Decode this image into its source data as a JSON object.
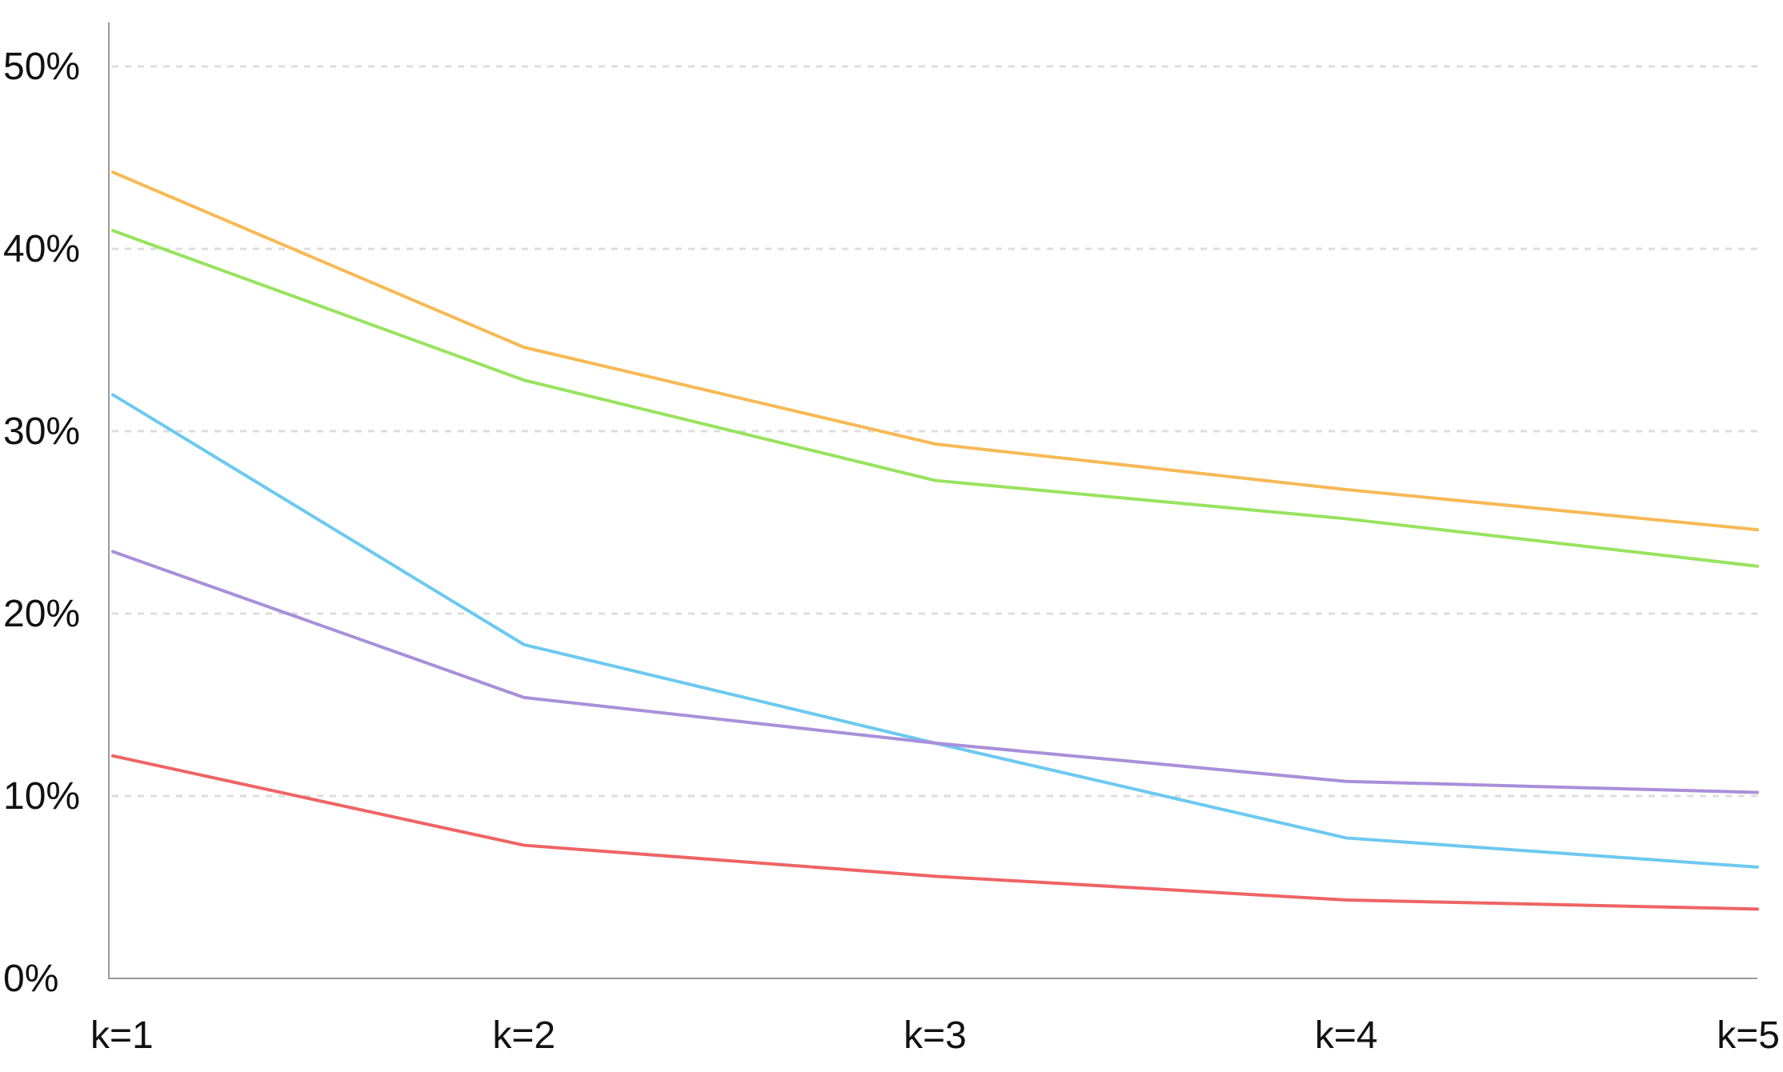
{
  "chart_data": {
    "type": "line",
    "title": "",
    "xlabel": "",
    "ylabel": "",
    "categories": [
      "k=1",
      "k=2",
      "k=3",
      "k=4",
      "k=5"
    ],
    "ylim": [
      0,
      50
    ],
    "y_ticks": [
      0,
      10,
      20,
      30,
      40,
      50
    ],
    "y_tick_labels": [
      "0%",
      "10%",
      "20%",
      "30%",
      "40%",
      "50%"
    ],
    "grid": true,
    "legend": "none",
    "series": [
      {
        "color": "#f7b955",
        "values": [
          44.2,
          34.6,
          29.3,
          26.8,
          24.6
        ]
      },
      {
        "color": "#97e35e",
        "values": [
          41.0,
          32.8,
          27.3,
          25.2,
          22.6
        ]
      },
      {
        "color": "#6cc9f0",
        "values": [
          32.0,
          18.3,
          12.9,
          7.7,
          6.1
        ]
      },
      {
        "color": "#a98fd9",
        "values": [
          23.4,
          15.4,
          12.9,
          10.8,
          10.2
        ]
      },
      {
        "color": "#ee6464",
        "values": [
          12.2,
          7.3,
          5.6,
          4.3,
          3.8
        ]
      }
    ]
  }
}
